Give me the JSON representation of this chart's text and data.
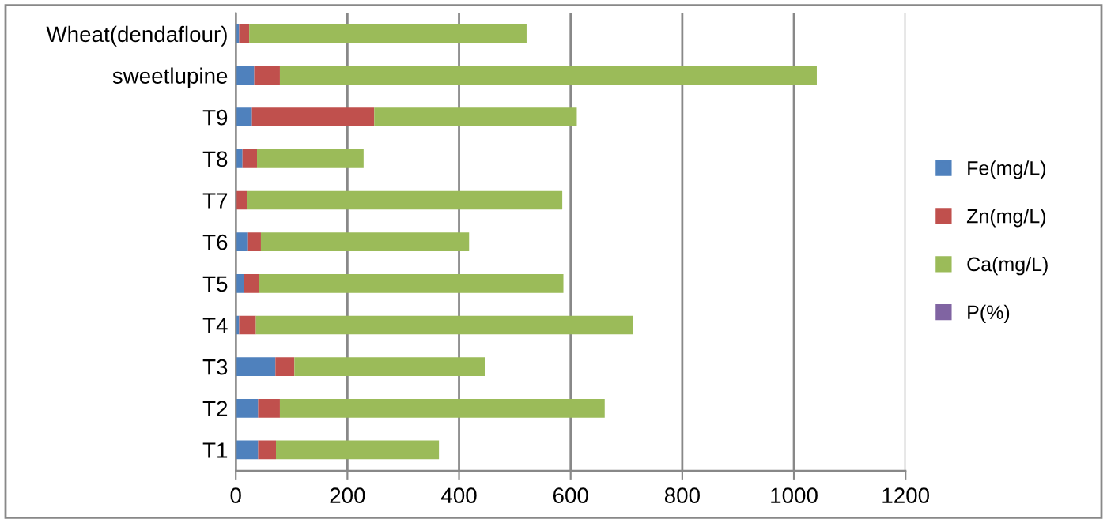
{
  "chart_data": {
    "type": "bar",
    "orientation": "horizontal",
    "stacked": true,
    "categories": [
      "Wheat(dendaflour)",
      "sweetlupine",
      "T9",
      "T8",
      "T7",
      "T6",
      "T5",
      "T4",
      "T3",
      "T2",
      "T1"
    ],
    "series": [
      {
        "name": "Fe(mg/L)",
        "color": "#4f81bd",
        "values": [
          6,
          33,
          29,
          12,
          null,
          22,
          14,
          6,
          71,
          40,
          40
        ]
      },
      {
        "name": "Zn(mg/L)",
        "color": "#c0504d",
        "values": [
          18,
          46,
          219,
          26,
          21,
          23,
          27,
          30,
          34,
          39,
          32
        ]
      },
      {
        "name": "Ca(mg/L)",
        "color": "#9bbb59",
        "values": [
          497,
          962,
          363,
          191,
          564,
          373,
          546,
          676,
          342,
          582,
          292
        ]
      },
      {
        "name": "P(%)",
        "color": "#8064a2",
        "values": [
          null,
          null,
          null,
          null,
          null,
          null,
          null,
          null,
          null,
          null,
          null
        ]
      }
    ],
    "xlim": [
      0,
      1200
    ],
    "xticks": [
      0,
      200,
      400,
      600,
      800,
      1000,
      1200
    ],
    "grid": "x",
    "legend": "right"
  }
}
